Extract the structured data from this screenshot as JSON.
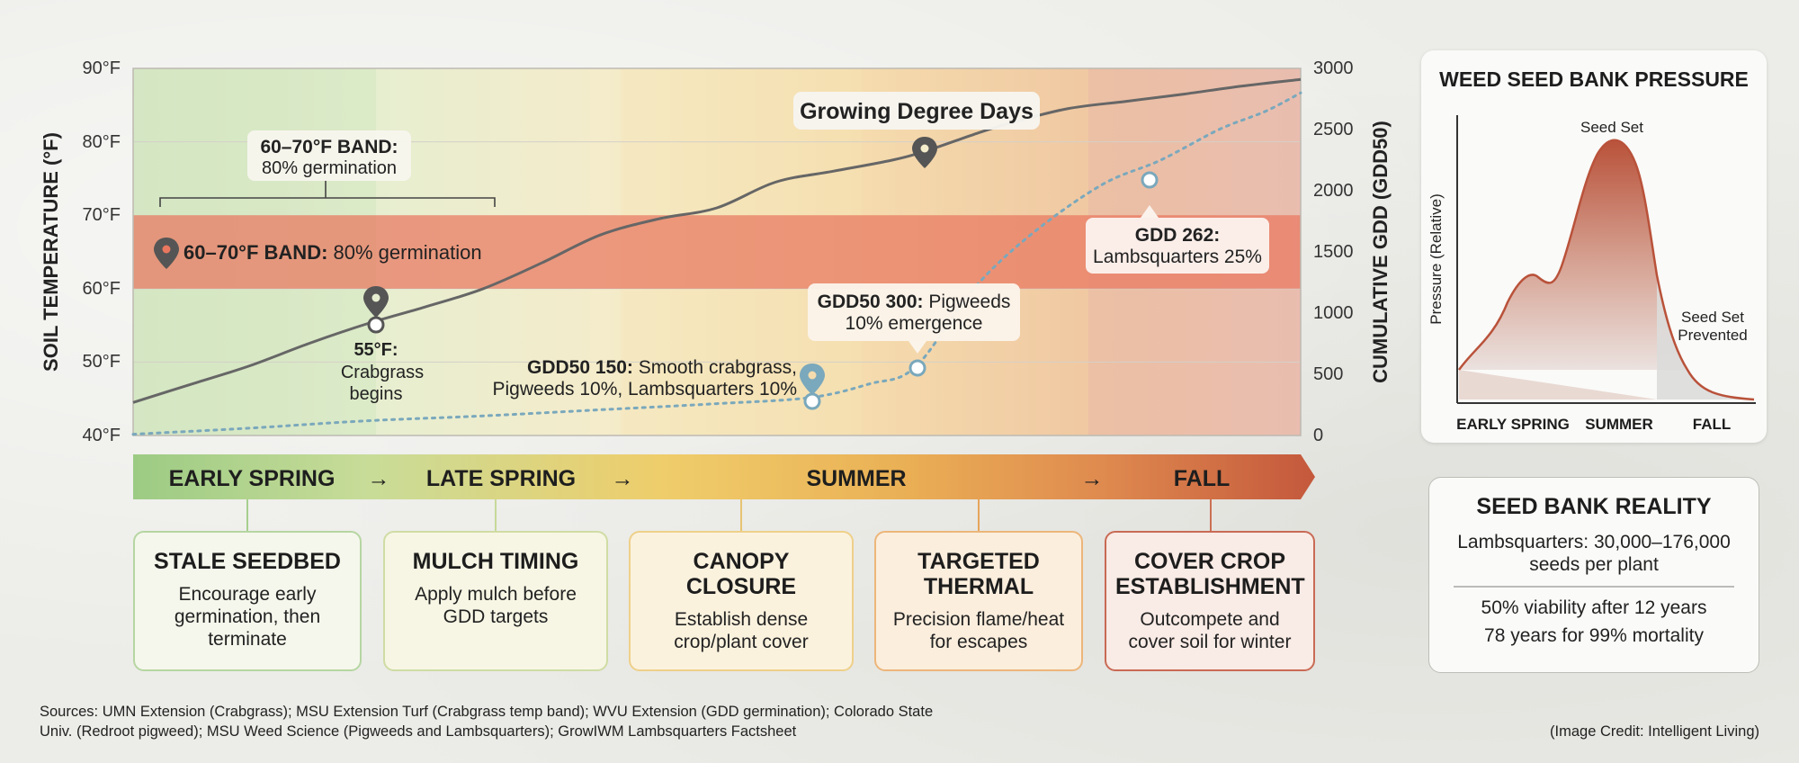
{
  "chart_data": {
    "type": "line",
    "y_left_label": "SOIL TEMPERATURE (°F)",
    "y_left_ticks": [
      "90°F",
      "80°F",
      "70°F",
      "60°F",
      "50°F",
      "40°F"
    ],
    "y_left_range": [
      40,
      90
    ],
    "y_right_label": "CUMULATIVE GDD (GDD50)",
    "y_right_ticks": [
      "3000",
      "2500",
      "2000",
      "1500",
      "1000",
      "500",
      "0"
    ],
    "y_right_range": [
      0,
      3000
    ],
    "x_range": [
      0,
      100
    ],
    "band": {
      "low": 60,
      "high": 70
    },
    "series": [
      {
        "name": "Growing Degree Days",
        "color": "#666666",
        "x": [
          0,
          5,
          10,
          15,
          20,
          25,
          30,
          35,
          40,
          45,
          50,
          55,
          60,
          65,
          68,
          72,
          75,
          80,
          85,
          90,
          95,
          100
        ],
        "y": [
          44.5,
          47,
          49.5,
          52.5,
          55.2,
          57.5,
          60,
          63.5,
          67.3,
          69.5,
          71,
          74.5,
          76,
          77.5,
          78.8,
          81,
          82.5,
          84.5,
          85.5,
          86.5,
          87.6,
          88.5
        ]
      },
      {
        "name": "GDD50",
        "color": "#7aa8bc",
        "x": [
          0,
          10,
          20,
          30,
          40,
          50,
          58,
          63,
          67,
          72,
          77,
          83,
          88,
          93,
          97,
          100
        ],
        "y": [
          10,
          60,
          120,
          160,
          210,
          260,
          310,
          420,
          560,
          1200,
          1650,
          2050,
          2250,
          2500,
          2650,
          2800
        ]
      }
    ]
  },
  "annotations": {
    "band_title": "60–70°F BAND:",
    "band_subtitle": "80% germination",
    "band_inline_bold": "60–70°F BAND:",
    "band_inline_rest": " 80% germination",
    "gdd_title": "Growing Degree Days",
    "crabgrass_temp": "55°F:",
    "crabgrass_line1": "Crabgrass",
    "crabgrass_line2": "begins",
    "gdd150_bold": "GDD50 150:",
    "gdd150_rest": " Smooth crabgrass,",
    "gdd150_line2": "Pigweeds 10%, Lambsquarters 10%",
    "gdd300_bold": "GDD50 300:",
    "gdd300_rest": " Pigweeds",
    "gdd300_line2": "10% emergence",
    "gdd262_bold": "GDD 262:",
    "gdd262_line2": "Lambsquarters 25%"
  },
  "season_bar": {
    "early_spring": "EARLY SPRING",
    "late_spring": "LATE SPRING",
    "summer": "SUMMER",
    "fall": "FALL",
    "arrow": "→"
  },
  "cards": [
    {
      "title1": "STALE SEEDBED",
      "title2": "",
      "line1": "Encourage early",
      "line2": "germination, then",
      "line3": "terminate"
    },
    {
      "title1": "MULCH TIMING",
      "title2": "",
      "line1": "Apply mulch before",
      "line2": "GDD targets",
      "line3": ""
    },
    {
      "title1": "CANOPY",
      "title2": "CLOSURE",
      "line1": "Establish dense",
      "line2": "crop/plant cover",
      "line3": ""
    },
    {
      "title1": "TARGETED",
      "title2": "THERMAL",
      "line1": "Precision flame/heat",
      "line2": "for escapes",
      "line3": ""
    },
    {
      "title1": "COVER CROP",
      "title2": "ESTABLISHMENT",
      "line1": "Outcompete and",
      "line2": "cover soil for winter",
      "line3": ""
    }
  ],
  "seed_bank_pressure": {
    "title": "WEED SEED BANK PRESSURE",
    "y_label": "Pressure (Relative)",
    "peak_label": "Seed Set",
    "prevented_label1": "Seed Set",
    "prevented_label2": "Prevented",
    "x_labels": [
      "EARLY SPRING",
      "SUMMER",
      "FALL"
    ]
  },
  "seed_bank_reality": {
    "title": "SEED BANK REALITY",
    "line1": "Lambsquarters: 30,000–176,000",
    "line2": "seeds per plant",
    "line3": "50% viability after 12 years",
    "line4": "78 years for 99% mortality"
  },
  "footer": {
    "sources1": "Sources: UMN Extension (Crabgrass); MSU Extension Turf (Crabgrass temp band); WVU Extension (GDD germination); Colorado State",
    "sources2": "Univ. (Redroot pigweed); MSU Weed Science (Pigweeds and Lambsquarters); GrowIWM Lambsquarters Factsheet",
    "credit": "(Image Credit: Intelligent Living)"
  }
}
